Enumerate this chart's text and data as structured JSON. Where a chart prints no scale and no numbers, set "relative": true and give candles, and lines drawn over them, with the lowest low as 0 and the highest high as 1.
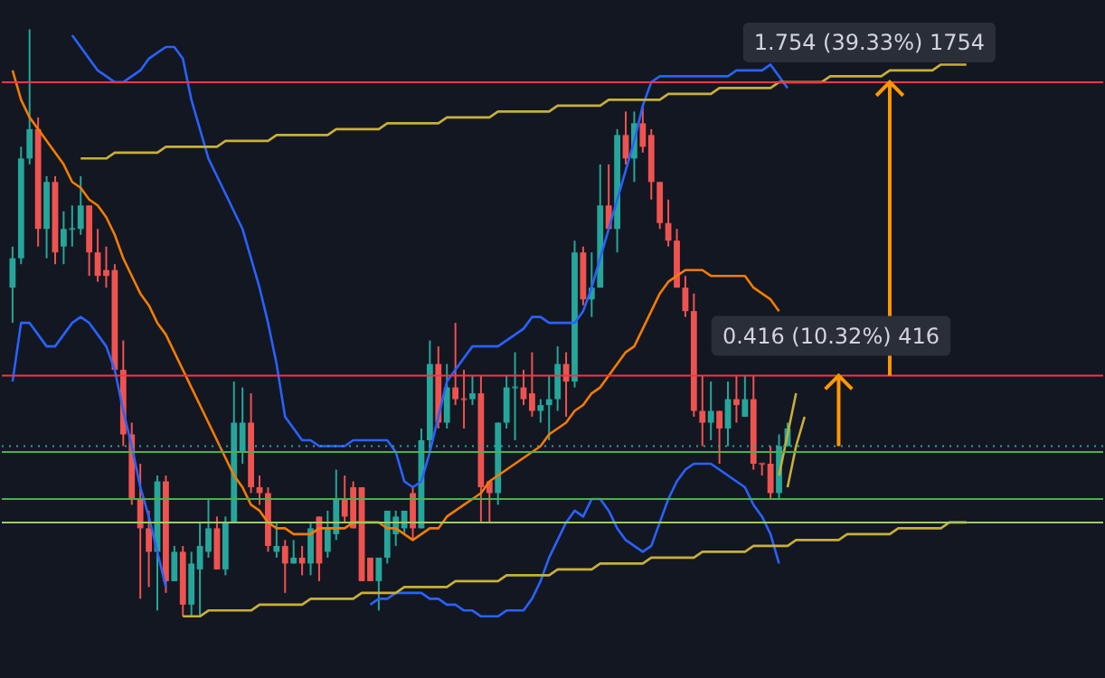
{
  "chart_data": {
    "type": "candlestick",
    "relative": true,
    "categories": [
      null,
      null,
      null,
      null,
      null,
      null,
      null,
      null,
      null,
      null,
      null,
      null,
      null,
      null,
      null,
      null,
      null,
      null,
      null,
      null,
      null,
      null,
      null,
      null,
      null,
      null,
      null,
      null,
      null,
      null,
      null,
      null,
      null,
      null,
      null,
      null,
      null,
      null,
      null,
      null,
      null,
      null,
      null,
      null,
      null,
      null,
      null,
      null,
      null,
      null,
      null,
      null,
      null,
      null,
      null,
      null,
      null,
      null,
      null,
      null,
      null,
      null,
      null,
      null,
      null,
      null,
      null,
      null,
      null,
      null,
      null,
      null,
      null,
      null,
      null,
      null,
      null,
      null,
      null,
      null,
      null,
      null,
      null,
      null,
      null,
      null,
      null,
      null,
      null,
      null,
      null,
      null,
      null,
      null,
      null,
      null,
      null,
      null,
      null,
      null,
      null,
      null,
      null,
      null,
      null,
      null,
      null,
      null,
      null,
      null,
      null,
      null,
      null,
      null,
      null,
      null,
      null,
      null,
      null,
      null,
      null,
      null,
      null,
      null,
      null,
      null,
      null,
      null
    ],
    "series": [
      {
        "colors": [
          "#26a69a",
          "#26a69a",
          "#26a69a",
          "#ef5350",
          "#26a69a",
          "#ef5350",
          "#26a69a",
          "#26a69a",
          "#26a69a",
          "#ef5350",
          "#ef5350",
          "#ef5350",
          "#ef5350",
          "#ef5350",
          "#ef5350",
          "#ef5350",
          "#ef5350",
          "#26a69a",
          "#ef5350",
          "#26a69a",
          "#ef5350",
          "#26a69a",
          "#26a69a",
          "#26a69a",
          "#ef5350",
          "#26a69a",
          "#26a69a",
          "#26a69a",
          "#ef5350",
          "#ef5350",
          "#ef5350",
          "#26a69a",
          "#ef5350",
          "#26a69a",
          "#ef5350",
          "#26a69a",
          "#ef5350",
          "#26a69a",
          "#26a69a",
          "#ef5350",
          "#ef5350",
          "#ef5350",
          "#ef5350",
          "#26a69a",
          "#26a69a",
          "#26a69a",
          "#26a69a",
          "#ef5350",
          "#26a69a",
          "#26a69a",
          "#ef5350",
          "#26a69a",
          "#ef5350",
          "#ef5350",
          "#26a69a",
          "#ef5350",
          "#ef5350",
          "#26a69a",
          "#26a69a",
          "#26a69a",
          "#ef5350",
          "#ef5350",
          "#26a69a",
          "#26a69a",
          "#26a69a",
          "#ef5350",
          "#26a69a",
          "#ef5350",
          "#26a69a",
          "#26a69a",
          "#ef5350",
          "#26a69a",
          "#ef5350",
          "#26a69a",
          "#ef5350",
          "#ef5350",
          "#ef5350",
          "#ef5350",
          "#ef5350",
          "#ef5350",
          "#ef5350",
          "#ef5350",
          "#26a69a",
          "#ef5350",
          "#26a69a",
          "#ef5350",
          "#26a69a",
          "#ef5350",
          "#ef5350",
          "#ef5350",
          "#26a69a",
          "#26a69a",
          null,
          null,
          null,
          null,
          null,
          null,
          null,
          null,
          null,
          null,
          null,
          null,
          null,
          null,
          null,
          null,
          null,
          null,
          null,
          null,
          null,
          null,
          null,
          null,
          null,
          null,
          null,
          null,
          null,
          null,
          null,
          null,
          null,
          null,
          null,
          null
        ],
        "ohlc": [
          [
            0.56,
            0.63,
            0.5,
            0.61
          ],
          [
            0.61,
            0.8,
            0.6,
            0.78
          ],
          [
            0.78,
            1.0,
            0.77,
            0.83
          ],
          [
            0.83,
            0.85,
            0.63,
            0.66
          ],
          [
            0.66,
            0.75,
            0.61,
            0.74
          ],
          [
            0.74,
            0.75,
            0.6,
            0.62
          ],
          [
            0.63,
            0.69,
            0.6,
            0.66
          ],
          [
            0.66,
            0.7,
            0.63,
            0.66
          ],
          [
            0.66,
            0.75,
            0.65,
            0.7
          ],
          [
            0.7,
            0.7,
            0.58,
            0.62
          ],
          [
            0.62,
            0.66,
            0.57,
            0.58
          ],
          [
            0.59,
            0.63,
            0.56,
            0.58
          ],
          [
            0.59,
            0.6,
            0.42,
            0.42
          ],
          [
            0.42,
            0.47,
            0.29,
            0.31
          ],
          [
            0.31,
            0.33,
            0.19,
            0.2
          ],
          [
            0.2,
            0.26,
            0.03,
            0.15
          ],
          [
            0.15,
            0.18,
            0.05,
            0.11
          ],
          [
            0.11,
            0.24,
            0.01,
            0.23
          ],
          [
            0.23,
            0.24,
            0.04,
            0.06
          ],
          [
            0.06,
            0.12,
            0.06,
            0.11
          ],
          [
            0.11,
            0.12,
            0.0,
            0.02
          ],
          [
            0.02,
            0.11,
            0.0,
            0.09
          ],
          [
            0.08,
            0.16,
            0.0,
            0.12
          ],
          [
            0.11,
            0.2,
            0.1,
            0.15
          ],
          [
            0.15,
            0.17,
            0.08,
            0.08
          ],
          [
            0.08,
            0.17,
            0.07,
            0.16
          ],
          [
            0.16,
            0.4,
            0.16,
            0.33
          ],
          [
            0.28,
            0.39,
            0.26,
            0.33
          ],
          [
            0.33,
            0.38,
            0.21,
            0.22
          ],
          [
            0.22,
            0.24,
            0.19,
            0.21
          ],
          [
            0.21,
            0.22,
            0.11,
            0.12
          ],
          [
            0.11,
            0.16,
            0.1,
            0.12
          ],
          [
            0.12,
            0.13,
            0.04,
            0.09
          ],
          [
            0.09,
            0.13,
            0.09,
            0.1
          ],
          [
            0.1,
            0.12,
            0.07,
            0.09
          ],
          [
            0.09,
            0.16,
            0.07,
            0.15
          ],
          [
            0.17,
            0.17,
            0.06,
            0.09
          ],
          [
            0.11,
            0.18,
            0.1,
            0.15
          ],
          [
            0.14,
            0.25,
            0.13,
            0.2
          ],
          [
            0.2,
            0.24,
            0.16,
            0.17
          ],
          [
            0.22,
            0.23,
            0.15,
            0.15
          ],
          [
            0.22,
            0.22,
            0.06,
            0.06
          ],
          [
            0.1,
            0.1,
            0.06,
            0.06
          ],
          [
            0.06,
            0.1,
            0.01,
            0.1
          ],
          [
            0.1,
            0.18,
            0.09,
            0.18
          ],
          [
            0.14,
            0.18,
            0.12,
            0.17
          ],
          [
            0.15,
            0.18,
            0.14,
            0.18
          ],
          [
            0.21,
            0.22,
            0.13,
            0.15
          ],
          [
            0.15,
            0.32,
            0.15,
            0.3
          ],
          [
            0.3,
            0.47,
            0.28,
            0.43
          ],
          [
            0.43,
            0.46,
            0.32,
            0.33
          ],
          [
            0.33,
            0.43,
            0.32,
            0.39
          ],
          [
            0.39,
            0.5,
            0.36,
            0.37
          ],
          [
            0.37,
            0.42,
            0.32,
            0.37
          ],
          [
            0.37,
            0.41,
            0.36,
            0.38
          ],
          [
            0.38,
            0.41,
            0.16,
            0.22
          ],
          [
            0.23,
            0.23,
            0.16,
            0.21
          ],
          [
            0.21,
            0.33,
            0.19,
            0.33
          ],
          [
            0.33,
            0.41,
            0.32,
            0.39
          ],
          [
            0.39,
            0.45,
            0.3,
            0.39
          ],
          [
            0.39,
            0.42,
            0.36,
            0.37
          ],
          [
            0.38,
            0.45,
            0.34,
            0.35
          ],
          [
            0.35,
            0.37,
            0.33,
            0.36
          ],
          [
            0.36,
            0.41,
            0.3,
            0.37
          ],
          [
            0.37,
            0.46,
            0.35,
            0.43
          ],
          [
            0.43,
            0.45,
            0.34,
            0.4
          ],
          [
            0.4,
            0.64,
            0.39,
            0.62
          ],
          [
            0.62,
            0.63,
            0.53,
            0.54
          ],
          [
            0.54,
            0.62,
            0.51,
            0.56
          ],
          [
            0.56,
            0.77,
            0.56,
            0.7
          ],
          [
            0.7,
            0.77,
            0.66,
            0.66
          ],
          [
            0.66,
            0.83,
            0.62,
            0.82
          ],
          [
            0.82,
            0.86,
            0.77,
            0.78
          ],
          [
            0.78,
            0.86,
            0.74,
            0.84
          ],
          [
            0.84,
            0.87,
            0.79,
            0.8
          ],
          [
            0.82,
            0.83,
            0.71,
            0.74
          ],
          [
            0.74,
            0.74,
            0.66,
            0.67
          ],
          [
            0.67,
            0.71,
            0.63,
            0.64
          ],
          [
            0.64,
            0.66,
            0.56,
            0.56
          ],
          [
            0.56,
            0.58,
            0.51,
            0.52
          ],
          [
            0.52,
            0.55,
            0.34,
            0.35
          ],
          [
            0.35,
            0.41,
            0.29,
            0.33
          ],
          [
            0.33,
            0.4,
            0.3,
            0.35
          ],
          [
            0.35,
            0.35,
            0.26,
            0.32
          ],
          [
            0.32,
            0.4,
            0.29,
            0.37
          ],
          [
            0.37,
            0.41,
            0.33,
            0.36
          ],
          [
            0.34,
            0.41,
            0.34,
            0.37
          ],
          [
            0.37,
            0.41,
            0.25,
            0.26
          ],
          [
            0.26,
            0.26,
            0.24,
            0.26
          ],
          [
            0.26,
            0.29,
            0.2,
            0.21
          ],
          [
            0.21,
            0.31,
            0.2,
            0.29
          ],
          [
            0.29,
            0.33,
            0.29,
            0.32
          ],
          null,
          null,
          null,
          null,
          null,
          null,
          null,
          null,
          null,
          null,
          null,
          null,
          null,
          null,
          null,
          null,
          null,
          null,
          null,
          null,
          null,
          null,
          null,
          null,
          null,
          null,
          null,
          null,
          null,
          null,
          null,
          null,
          null,
          null,
          null,
          null
        ]
      },
      {
        "type": "line",
        "color": "#2962ff",
        "values": [
          null,
          null,
          null,
          null,
          null,
          null,
          null,
          0.99,
          0.97,
          0.95,
          0.93,
          0.92,
          0.91,
          0.91,
          0.92,
          0.93,
          0.95,
          0.96,
          0.97,
          0.97,
          0.95,
          0.88,
          0.83,
          0.78,
          0.75,
          0.72,
          0.69,
          0.66,
          0.61,
          0.56,
          0.5,
          0.43,
          0.34,
          0.32,
          0.3,
          0.3,
          0.29,
          0.29,
          0.29,
          0.29,
          0.3,
          0.3,
          0.3,
          0.3,
          0.3,
          0.28,
          0.23,
          0.22,
          0.23,
          0.28,
          0.34,
          0.4,
          0.42,
          0.44,
          0.46,
          0.46,
          0.46,
          0.46,
          0.47,
          0.48,
          0.49,
          0.51,
          0.51,
          0.5,
          0.5,
          0.5,
          0.5,
          0.52,
          0.56,
          0.61,
          0.66,
          0.71,
          0.76,
          0.81,
          0.87,
          0.91,
          0.92,
          0.92,
          0.92,
          0.92,
          0.92,
          0.92,
          0.92,
          0.92,
          0.92,
          0.93,
          0.93,
          0.93,
          0.93,
          0.94,
          0.92,
          0.9,
          null,
          null,
          null,
          null,
          null,
          null,
          null,
          null,
          null,
          null,
          null,
          null,
          null,
          null,
          null,
          null,
          null,
          null,
          null,
          null,
          null,
          null,
          null,
          null,
          null,
          null,
          null,
          null,
          null,
          null,
          null,
          null,
          null,
          null,
          null,
          null
        ]
      },
      {
        "type": "line",
        "color": "#2962ff",
        "values": [
          0.4,
          0.5,
          0.5,
          0.48,
          0.46,
          0.46,
          0.48,
          0.5,
          0.51,
          0.5,
          0.48,
          0.46,
          0.42,
          0.35,
          0.29,
          0.22,
          0.17,
          0.11,
          0.05,
          null,
          null,
          null,
          null,
          null,
          null,
          null,
          null,
          null,
          null,
          null,
          null,
          null,
          null,
          null,
          null,
          null,
          null,
          null,
          null,
          null,
          null,
          null,
          0.02,
          0.03,
          0.03,
          0.04,
          0.04,
          0.04,
          0.04,
          0.03,
          0.03,
          0.02,
          0.02,
          0.01,
          0.01,
          0.0,
          0.0,
          0.0,
          0.01,
          0.01,
          0.01,
          0.03,
          0.06,
          0.1,
          0.13,
          0.16,
          0.18,
          0.17,
          0.2,
          0.2,
          0.18,
          0.15,
          0.13,
          0.12,
          0.11,
          0.12,
          0.16,
          0.2,
          0.23,
          0.25,
          0.26,
          0.26,
          0.26,
          0.25,
          0.24,
          0.23,
          0.22,
          0.19,
          0.17,
          0.14,
          0.09,
          null,
          null,
          null,
          null,
          null,
          null,
          null,
          null,
          null,
          null,
          null,
          null,
          null,
          null,
          null,
          null,
          null,
          null,
          null,
          null,
          null,
          null,
          null,
          null,
          null,
          null,
          null,
          null,
          null,
          null,
          null,
          null,
          null,
          null,
          null,
          null,
          null
        ]
      },
      {
        "type": "line",
        "color": "#f57c00",
        "values": [
          0.93,
          0.88,
          0.85,
          0.83,
          0.81,
          0.79,
          0.77,
          0.74,
          0.73,
          0.71,
          0.7,
          0.68,
          0.65,
          0.61,
          0.58,
          0.55,
          0.53,
          0.5,
          0.48,
          0.45,
          0.42,
          0.39,
          0.36,
          0.33,
          0.3,
          0.27,
          0.24,
          0.22,
          0.19,
          0.18,
          0.16,
          0.15,
          0.15,
          0.14,
          0.14,
          0.14,
          0.15,
          0.15,
          0.15,
          0.15,
          0.16,
          0.16,
          0.16,
          0.16,
          0.15,
          0.15,
          0.14,
          0.13,
          0.14,
          0.15,
          0.15,
          0.17,
          0.18,
          0.19,
          0.2,
          0.21,
          0.23,
          0.24,
          0.25,
          0.26,
          0.27,
          0.28,
          0.29,
          0.31,
          0.32,
          0.33,
          0.35,
          0.36,
          0.38,
          0.39,
          0.41,
          0.43,
          0.45,
          0.46,
          0.49,
          0.52,
          0.55,
          0.57,
          0.58,
          0.59,
          0.59,
          0.59,
          0.58,
          0.58,
          0.58,
          0.58,
          0.58,
          0.56,
          0.55,
          0.54,
          0.52,
          null,
          null,
          null,
          null,
          null,
          null,
          null,
          null,
          null,
          null,
          null,
          null,
          null,
          null,
          null,
          null,
          null,
          null,
          null,
          null,
          null,
          null,
          null,
          null,
          null,
          null,
          null,
          null,
          null,
          null,
          null,
          null,
          null,
          null,
          null,
          null,
          null
        ]
      },
      {
        "type": "line",
        "color": "#c9b037",
        "values": [
          null,
          null,
          null,
          null,
          null,
          null,
          null,
          null,
          0.78,
          0.78,
          0.78,
          0.78,
          0.79,
          0.79,
          0.79,
          0.79,
          0.79,
          0.79,
          0.8,
          0.8,
          0.8,
          0.8,
          0.8,
          0.8,
          0.8,
          0.81,
          0.81,
          0.81,
          0.81,
          0.81,
          0.81,
          0.82,
          0.82,
          0.82,
          0.82,
          0.82,
          0.82,
          0.82,
          0.83,
          0.83,
          0.83,
          0.83,
          0.83,
          0.83,
          0.84,
          0.84,
          0.84,
          0.84,
          0.84,
          0.84,
          0.84,
          0.85,
          0.85,
          0.85,
          0.85,
          0.85,
          0.85,
          0.86,
          0.86,
          0.86,
          0.86,
          0.86,
          0.86,
          0.86,
          0.87,
          0.87,
          0.87,
          0.87,
          0.87,
          0.87,
          0.88,
          0.88,
          0.88,
          0.88,
          0.88,
          0.88,
          0.88,
          0.89,
          0.89,
          0.89,
          0.89,
          0.89,
          0.89,
          0.9,
          0.9,
          0.9,
          0.9,
          0.9,
          0.9,
          0.9,
          0.91,
          0.91,
          0.91,
          0.91,
          0.91,
          0.91,
          0.92,
          0.92,
          0.92,
          0.92,
          0.92,
          0.92,
          0.92,
          0.93,
          0.93,
          0.93,
          0.93,
          0.93,
          0.93,
          0.94,
          0.94,
          0.94,
          0.94,
          null,
          null,
          null,
          null,
          null,
          null,
          null,
          null,
          null,
          null,
          null,
          null,
          null,
          null,
          null
        ]
      },
      {
        "type": "line",
        "color": "#c9b037",
        "values": [
          null,
          null,
          null,
          null,
          null,
          null,
          null,
          null,
          null,
          null,
          null,
          null,
          null,
          null,
          null,
          null,
          null,
          null,
          null,
          null,
          0.0,
          0.0,
          0.0,
          0.01,
          0.01,
          0.01,
          0.01,
          0.01,
          0.01,
          0.02,
          0.02,
          0.02,
          0.02,
          0.02,
          0.02,
          0.03,
          0.03,
          0.03,
          0.03,
          0.03,
          0.03,
          0.04,
          0.04,
          0.04,
          0.04,
          0.04,
          0.05,
          0.05,
          0.05,
          0.05,
          0.05,
          0.05,
          0.06,
          0.06,
          0.06,
          0.06,
          0.06,
          0.06,
          0.07,
          0.07,
          0.07,
          0.07,
          0.07,
          0.07,
          0.08,
          0.08,
          0.08,
          0.08,
          0.08,
          0.09,
          0.09,
          0.09,
          0.09,
          0.09,
          0.09,
          0.1,
          0.1,
          0.1,
          0.1,
          0.1,
          0.1,
          0.11,
          0.11,
          0.11,
          0.11,
          0.11,
          0.11,
          0.12,
          0.12,
          0.12,
          0.12,
          0.12,
          0.13,
          0.13,
          0.13,
          0.13,
          0.13,
          0.13,
          0.14,
          0.14,
          0.14,
          0.14,
          0.14,
          0.14,
          0.15,
          0.15,
          0.15,
          0.15,
          0.15,
          0.15,
          0.16,
          0.16,
          0.16,
          null,
          null,
          null,
          null,
          null,
          null,
          null,
          null,
          null,
          null,
          null,
          null,
          null,
          null,
          null
        ]
      },
      {
        "type": "line",
        "color": "#c9b037",
        "values": [
          null,
          null,
          null,
          null,
          null,
          null,
          null,
          null,
          null,
          null,
          null,
          null,
          null,
          null,
          null,
          null,
          null,
          null,
          null,
          null,
          null,
          null,
          null,
          null,
          null,
          null,
          null,
          null,
          null,
          null,
          null,
          null,
          null,
          null,
          null,
          null,
          null,
          null,
          null,
          null,
          null,
          null,
          null,
          null,
          null,
          null,
          null,
          null,
          null,
          null,
          null,
          null,
          null,
          null,
          null,
          null,
          null,
          null,
          null,
          null,
          null,
          null,
          null,
          null,
          null,
          null,
          null,
          null,
          null,
          null,
          null,
          null,
          null,
          null,
          null,
          null,
          null,
          null,
          null,
          null,
          null,
          null,
          null,
          null,
          null,
          null,
          null,
          null,
          null,
          null,
          0.24,
          0.31,
          0.38,
          null,
          null,
          null,
          null,
          null,
          null,
          null,
          null,
          null,
          null,
          null,
          null,
          null,
          null,
          null,
          null,
          null,
          null,
          null,
          null,
          null,
          null,
          null,
          null,
          null,
          null,
          null,
          null,
          null,
          null,
          null,
          null,
          null,
          null,
          null
        ]
      },
      {
        "type": "line",
        "color": "#c9b037",
        "values": [
          null,
          null,
          null,
          null,
          null,
          null,
          null,
          null,
          null,
          null,
          null,
          null,
          null,
          null,
          null,
          null,
          null,
          null,
          null,
          null,
          null,
          null,
          null,
          null,
          null,
          null,
          null,
          null,
          null,
          null,
          null,
          null,
          null,
          null,
          null,
          null,
          null,
          null,
          null,
          null,
          null,
          null,
          null,
          null,
          null,
          null,
          null,
          null,
          null,
          null,
          null,
          null,
          null,
          null,
          null,
          null,
          null,
          null,
          null,
          null,
          null,
          null,
          null,
          null,
          null,
          null,
          null,
          null,
          null,
          null,
          null,
          null,
          null,
          null,
          null,
          null,
          null,
          null,
          null,
          null,
          null,
          null,
          null,
          null,
          null,
          null,
          null,
          null,
          null,
          null,
          null,
          0.22,
          0.29,
          0.34,
          null,
          null,
          null,
          null,
          null,
          null,
          null,
          null,
          null,
          null,
          null,
          null,
          null,
          null,
          null,
          null,
          null,
          null,
          null,
          null,
          null,
          null,
          null,
          null,
          null,
          null,
          null,
          null,
          null,
          null,
          null,
          null,
          null,
          null
        ]
      }
    ],
    "ref_lines": [
      {
        "axis": "y",
        "value": 0.91,
        "color": "#f23645"
      },
      {
        "axis": "y",
        "value": 0.41,
        "color": "#f23645"
      },
      {
        "axis": "y",
        "value": 0.29,
        "color": "#26a69a",
        "line_style": "dotted"
      },
      {
        "axis": "y",
        "value": 0.28,
        "color": "#4caf50"
      },
      {
        "axis": "y",
        "value": 0.2,
        "color": "#4caf50"
      },
      {
        "axis": "y",
        "value": 0.16,
        "color": "#9ccc65"
      }
    ],
    "annotations": [
      {
        "text": "1.754 (39.33%) 1754",
        "y": 0.91
      },
      {
        "text": "0.416 (10.32%) 416",
        "y": 0.41
      }
    ]
  }
}
